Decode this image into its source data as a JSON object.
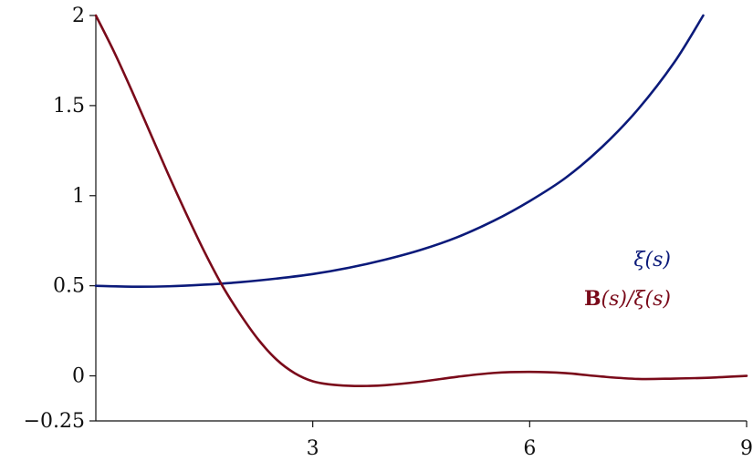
{
  "chart_data": {
    "type": "line",
    "title": "",
    "xlabel": "",
    "ylabel": "",
    "xlim": [
      0,
      9
    ],
    "ylim": [
      -0.25,
      2
    ],
    "xticks": [
      3,
      6,
      9
    ],
    "xtick_labels": [
      "3",
      "6",
      "9"
    ],
    "yticks": [
      -0.25,
      0,
      0.5,
      1,
      1.5,
      2
    ],
    "ytick_labels": [
      "−0.25",
      "0",
      "0.5",
      "1",
      "1.5",
      "2"
    ],
    "grid": false,
    "legend_position": "right",
    "series": [
      {
        "name": "ξ(s)",
        "color": "#0b1a7a",
        "x": [
          0,
          0.5,
          1,
          1.5,
          2,
          2.5,
          3,
          3.5,
          4,
          4.5,
          5,
          5.5,
          6,
          6.5,
          7,
          7.5,
          8,
          8.4
        ],
        "y": [
          0.5,
          0.495,
          0.497,
          0.506,
          0.52,
          0.54,
          0.565,
          0.6,
          0.645,
          0.7,
          0.77,
          0.86,
          0.97,
          1.1,
          1.27,
          1.48,
          1.74,
          2.0
        ]
      },
      {
        "name": "B(s)/ξ(s)",
        "name_parts": {
          "bold": "B",
          "rest": "(s)/ξ(s)"
        },
        "color": "#7a0a1a",
        "x": [
          0,
          0.25,
          0.5,
          0.75,
          1,
          1.25,
          1.5,
          1.75,
          2,
          2.25,
          2.5,
          2.75,
          3,
          3.25,
          3.5,
          3.75,
          4,
          4.5,
          5,
          5.5,
          6,
          6.5,
          7,
          7.5,
          8,
          8.5,
          9
        ],
        "y": [
          2.0,
          1.8,
          1.58,
          1.35,
          1.12,
          0.9,
          0.69,
          0.5,
          0.34,
          0.2,
          0.09,
          0.015,
          -0.03,
          -0.048,
          -0.055,
          -0.056,
          -0.052,
          -0.032,
          -0.005,
          0.016,
          0.022,
          0.015,
          -0.004,
          -0.017,
          -0.015,
          -0.01,
          0.0
        ]
      }
    ]
  }
}
